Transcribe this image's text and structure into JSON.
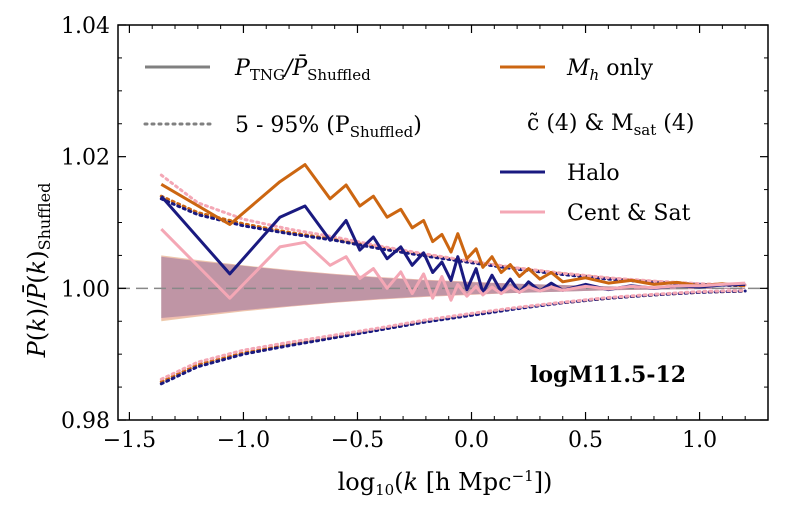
{
  "chart_data": {
    "type": "line",
    "title": "",
    "xlabel": "log10(k [h Mpc^-1])",
    "ylabel": "P(k)/P̄(k)_Shuffled",
    "xlim": [
      -1.55,
      1.3
    ],
    "ylim": [
      0.98,
      1.04
    ],
    "x_ticks": [
      -1.5,
      -1.0,
      -0.5,
      0.0,
      0.5,
      1.0
    ],
    "x_tick_labels": [
      "−1.5",
      "−1.0",
      "−0.5",
      "0.0",
      "0.5",
      "1.0"
    ],
    "y_ticks": [
      0.98,
      1.0,
      1.02,
      1.04
    ],
    "y_tick_labels": [
      "0.98",
      "1.00",
      "1.02",
      "1.04"
    ],
    "reference_line": {
      "y": 1.0,
      "style": "dashed",
      "color": "#888888"
    },
    "panel_label": "logM11.5-12",
    "legend": [
      {
        "label_main": "P",
        "label_sub": "TNG",
        "label_tail": "/P̄",
        "label_sub2": "Shuffled",
        "style": "solid",
        "color": "#808080"
      },
      {
        "label_main": "5 - 95% (P",
        "label_sub": "Shuffled",
        "label_tail": ")",
        "style": "dotted",
        "color": "#808080"
      },
      {
        "label_main": "M",
        "label_sub": "h",
        "label_tail": " only",
        "style": "solid",
        "color": "#cc6611"
      },
      {
        "label_main": "c̃  (4) & M",
        "label_sub": "sat",
        "label_tail": " (4)",
        "style": "none",
        "color": "#000000"
      },
      {
        "label_main": "Halo",
        "style": "solid",
        "color": "#1a1a80"
      },
      {
        "label_main": "Cent & Sat",
        "style": "solid",
        "color": "#f4a7b5"
      }
    ],
    "series": [
      {
        "name": "Mh only",
        "color": "#cc6611",
        "x": [
          -1.36,
          -1.06,
          -0.84,
          -0.73,
          -0.62,
          -0.55,
          -0.49,
          -0.43,
          -0.37,
          -0.31,
          -0.26,
          -0.21,
          -0.17,
          -0.13,
          -0.09,
          -0.06,
          -0.02,
          0.02,
          0.05,
          0.09,
          0.13,
          0.17,
          0.21,
          0.25,
          0.3,
          0.35,
          0.4,
          0.5,
          0.6,
          0.7,
          0.8,
          0.9,
          1.0,
          1.1,
          1.2
        ],
        "values": [
          1.0158,
          1.0097,
          1.0162,
          1.0188,
          1.0136,
          1.0157,
          1.0125,
          1.014,
          1.0108,
          1.012,
          1.0092,
          1.0103,
          1.0071,
          1.0082,
          1.0055,
          1.0083,
          1.0045,
          1.006,
          1.0032,
          1.0048,
          1.0024,
          1.0036,
          1.0018,
          1.003,
          1.0014,
          1.0024,
          1.001,
          1.0016,
          1.0008,
          1.0012,
          1.0006,
          1.0009,
          1.0004,
          1.0007,
          1.0004
        ]
      },
      {
        "name": "Halo",
        "color": "#1a1a80",
        "x": [
          -1.36,
          -1.06,
          -0.84,
          -0.73,
          -0.62,
          -0.55,
          -0.49,
          -0.43,
          -0.37,
          -0.31,
          -0.26,
          -0.21,
          -0.17,
          -0.13,
          -0.09,
          -0.06,
          -0.02,
          0.02,
          0.05,
          0.09,
          0.13,
          0.17,
          0.21,
          0.25,
          0.3,
          0.35,
          0.4,
          0.5,
          0.6,
          0.7,
          0.8,
          0.9,
          1.0,
          1.1,
          1.2
        ],
        "values": [
          1.014,
          1.0022,
          1.0108,
          1.0125,
          1.0073,
          1.0103,
          1.0058,
          1.0078,
          1.0045,
          1.0063,
          1.0035,
          1.0054,
          1.0024,
          1.004,
          1.0012,
          1.0048,
          0.9998,
          1.003,
          0.9993,
          1.002,
          0.9995,
          1.0014,
          0.9994,
          1.001,
          0.9996,
          1.0008,
          0.9997,
          1.0006,
          0.9998,
          1.0004,
          1.0,
          1.0004,
          1.0002,
          1.0005,
          1.0006
        ]
      },
      {
        "name": "Cent & Sat",
        "color": "#f4a7b5",
        "x": [
          -1.36,
          -1.06,
          -0.84,
          -0.73,
          -0.62,
          -0.55,
          -0.49,
          -0.43,
          -0.37,
          -0.31,
          -0.26,
          -0.21,
          -0.17,
          -0.13,
          -0.09,
          -0.06,
          -0.02,
          0.02,
          0.05,
          0.09,
          0.13,
          0.17,
          0.21,
          0.25,
          0.3,
          0.35,
          0.4,
          0.5,
          0.6,
          0.7,
          0.8,
          0.9,
          1.0,
          1.1,
          1.2
        ],
        "values": [
          1.009,
          0.9985,
          1.0063,
          1.007,
          1.0035,
          1.0048,
          1.0015,
          1.003,
          1.0,
          1.0025,
          0.9992,
          1.0022,
          0.9985,
          1.0018,
          0.9982,
          1.0006,
          0.9988,
          1.0003,
          0.999,
          1.0002,
          0.9992,
          1.0002,
          0.9994,
          1.0002,
          0.9996,
          1.0002,
          0.9997,
          1.0003,
          0.9999,
          1.0003,
          1.0001,
          1.0004,
          1.0004,
          1.0006,
          1.0008
        ]
      }
    ],
    "bands": [
      {
        "name": "Mh only band",
        "color": "#cc6611",
        "x": [
          -1.36,
          -1.2,
          -1.0,
          -0.8,
          -0.6,
          -0.4,
          -0.2,
          0.0,
          0.2,
          0.4,
          0.6,
          0.8,
          1.0,
          1.2
        ],
        "lower": [
          0.995,
          0.9957,
          0.9965,
          0.9972,
          0.9978,
          0.9983,
          0.9987,
          0.999,
          0.9993,
          0.9995,
          0.9997,
          0.9998,
          0.9999,
          0.9999
        ],
        "upper": [
          1.005,
          1.0043,
          1.0035,
          1.0028,
          1.0022,
          1.0017,
          1.0013,
          1.001,
          1.0007,
          1.0005,
          1.0003,
          1.0002,
          1.0001,
          1.0001
        ]
      },
      {
        "name": "Halo band",
        "color": "#1a1a80",
        "x": [
          -1.36,
          -1.2,
          -1.0,
          -0.8,
          -0.6,
          -0.4,
          -0.2,
          0.0,
          0.2,
          0.4,
          0.6,
          0.8,
          1.0,
          1.2
        ],
        "lower": [
          0.9955,
          0.996,
          0.9967,
          0.9973,
          0.9979,
          0.9984,
          0.9988,
          0.9991,
          0.9993,
          0.9995,
          0.9997,
          0.9998,
          0.9999,
          0.9999
        ],
        "upper": [
          1.0048,
          1.0041,
          1.0034,
          1.0027,
          1.0021,
          1.0016,
          1.0012,
          1.0009,
          1.0007,
          1.0005,
          1.0003,
          1.0002,
          1.0001,
          1.0001
        ]
      },
      {
        "name": "Cent & Sat band",
        "color": "#f4a7b5",
        "x": [
          -1.36,
          -1.2,
          -1.0,
          -0.8,
          -0.6,
          -0.4,
          -0.2,
          0.0,
          0.2,
          0.4,
          0.6,
          0.8,
          1.0,
          1.2
        ],
        "lower": [
          0.9952,
          0.9958,
          0.9966,
          0.9972,
          0.9978,
          0.9983,
          0.9987,
          0.999,
          0.9993,
          0.9995,
          0.9997,
          0.9998,
          0.9999,
          0.9999
        ],
        "upper": [
          1.0049,
          1.0042,
          1.0034,
          1.0028,
          1.0022,
          1.0017,
          1.0013,
          1.001,
          1.0007,
          1.0005,
          1.0003,
          1.0002,
          1.0001,
          1.0001
        ]
      }
    ],
    "percentile_lines": [
      {
        "name": "Mh only 5-95%",
        "color": "#cc6611",
        "x": [
          -1.36,
          -1.2,
          -1.0,
          -0.8,
          -0.6,
          -0.4,
          -0.2,
          0.0,
          0.2,
          0.4,
          0.6,
          0.8,
          1.0,
          1.2
        ],
        "upper": [
          1.014,
          1.0115,
          1.0098,
          1.0085,
          1.0074,
          1.0062,
          1.005,
          1.004,
          1.003,
          1.0022,
          1.0015,
          1.001,
          1.0006,
          1.0004
        ],
        "lower": [
          0.9858,
          0.9884,
          0.9902,
          0.9915,
          0.9926,
          0.9938,
          0.995,
          0.996,
          0.997,
          0.9978,
          0.9985,
          0.999,
          0.9994,
          0.9996
        ]
      },
      {
        "name": "Halo 5-95%",
        "color": "#1a1a80",
        "x": [
          -1.36,
          -1.2,
          -1.0,
          -0.8,
          -0.6,
          -0.4,
          -0.2,
          0.0,
          0.2,
          0.4,
          0.6,
          0.8,
          1.0,
          1.2
        ],
        "upper": [
          1.0136,
          1.0112,
          1.0095,
          1.0083,
          1.0073,
          1.006,
          1.0049,
          1.0039,
          1.0029,
          1.0021,
          1.0014,
          1.0009,
          1.0006,
          1.0004
        ],
        "lower": [
          0.9855,
          0.9881,
          0.99,
          0.9913,
          0.9925,
          0.9937,
          0.9949,
          0.9959,
          0.9969,
          0.9978,
          0.9985,
          0.999,
          0.9994,
          0.9996
        ]
      },
      {
        "name": "Cent & Sat 5-95%",
        "color": "#f4a7b5",
        "x": [
          -1.36,
          -1.2,
          -1.0,
          -0.8,
          -0.6,
          -0.4,
          -0.2,
          0.0,
          0.2,
          0.4,
          0.6,
          0.8,
          1.0,
          1.2
        ],
        "upper": [
          1.0172,
          1.013,
          1.0105,
          1.009,
          1.0078,
          1.0064,
          1.0052,
          1.0041,
          1.0031,
          1.0023,
          1.0016,
          1.0011,
          1.0007,
          1.0005
        ],
        "lower": [
          0.9862,
          0.9888,
          0.9906,
          0.9918,
          0.9929,
          0.994,
          0.9952,
          0.9962,
          0.9971,
          0.9979,
          0.9986,
          0.9991,
          0.9995,
          0.9997
        ]
      }
    ]
  }
}
